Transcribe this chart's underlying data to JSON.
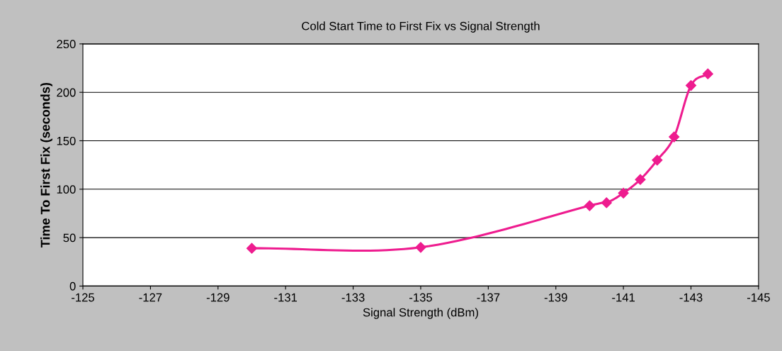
{
  "chart_data": {
    "type": "line",
    "title": "Cold Start Time to First Fix vs Signal Strength",
    "xlabel": "Signal Strength (dBm)",
    "ylabel": "Time To First Fix (seconds)",
    "x": [
      -130,
      -135,
      -140,
      -140.5,
      -141,
      -141.5,
      -142,
      -142.5,
      -143,
      -143.5
    ],
    "series": [
      {
        "color": "#ee1c8f",
        "values": [
          39,
          40,
          83,
          86,
          96,
          110,
          130,
          154,
          207,
          219
        ]
      }
    ],
    "xlim": [
      -125,
      -145
    ],
    "xticks": [
      -125,
      -127,
      -129,
      -131,
      -133,
      -135,
      -137,
      -139,
      -141,
      -143,
      -145
    ],
    "ylim": [
      0,
      250
    ],
    "yticks": [
      0,
      50,
      100,
      150,
      200,
      250
    ],
    "grid": "y",
    "marker": "diamond",
    "line_style": "solid",
    "legend": false
  }
}
